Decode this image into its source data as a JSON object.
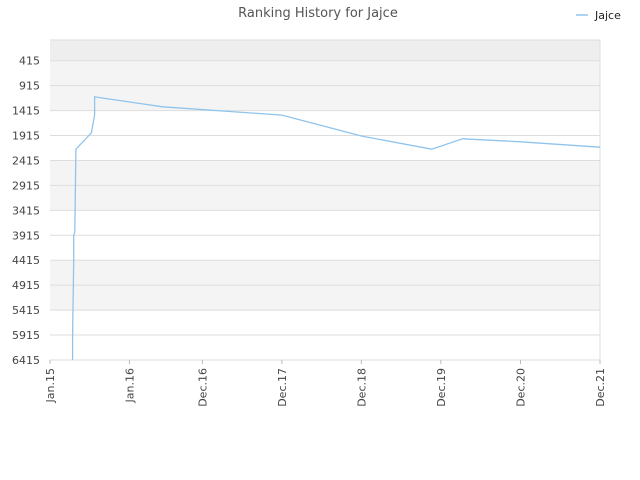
{
  "chart_data": {
    "type": "line",
    "title": "Ranking History for Jajce",
    "xlabel": "",
    "ylabel": "",
    "y_inverted": true,
    "ylim": [
      6415,
      0
    ],
    "y_ticks": [
      415,
      915,
      1415,
      1915,
      2415,
      2915,
      3415,
      3915,
      4415,
      4915,
      5415,
      5915,
      6415
    ],
    "x_ticks": [
      "Jan.15",
      "Jan.16",
      "Dec.16",
      "Dec.17",
      "Dec.18",
      "Dec.19",
      "Dec.20",
      "Dec.21"
    ],
    "x_tick_dates": [
      "2015-01-01",
      "2016-01-01",
      "2016-12-01",
      "2017-12-01",
      "2018-12-01",
      "2019-12-01",
      "2020-12-01",
      "2021-12-01"
    ],
    "legend_position": "top-right",
    "colors": {
      "line": "#90c4ec",
      "band_dark": "#f4f4f4",
      "band_top": "#eeeeee",
      "grid": "#dddddd"
    },
    "series": [
      {
        "name": "Jajce",
        "points": [
          {
            "x": "2015-04-15",
            "y": 6415
          },
          {
            "x": "2015-04-15",
            "y": 5900
          },
          {
            "x": "2015-04-20",
            "y": 4440
          },
          {
            "x": "2015-04-20",
            "y": 3920
          },
          {
            "x": "2015-04-25",
            "y": 3850
          },
          {
            "x": "2015-04-30",
            "y": 2190
          },
          {
            "x": "2015-07-10",
            "y": 1860
          },
          {
            "x": "2015-07-25",
            "y": 1500
          },
          {
            "x": "2015-07-25",
            "y": 1140
          },
          {
            "x": "2016-06-01",
            "y": 1340
          },
          {
            "x": "2017-12-01",
            "y": 1505
          },
          {
            "x": "2018-12-01",
            "y": 1925
          },
          {
            "x": "2019-10-20",
            "y": 2190
          },
          {
            "x": "2020-03-10",
            "y": 1980
          },
          {
            "x": "2020-12-01",
            "y": 2040
          },
          {
            "x": "2021-12-01",
            "y": 2150
          }
        ]
      }
    ]
  }
}
